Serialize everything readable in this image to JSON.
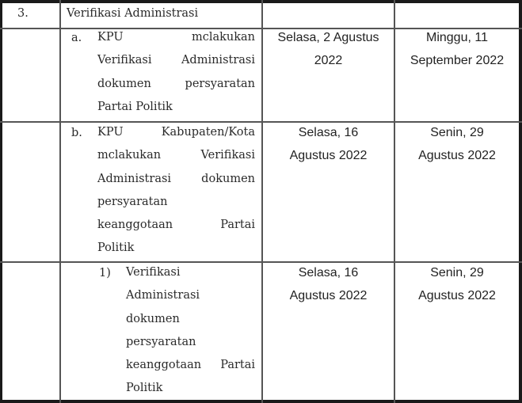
{
  "row_heading": {
    "number": "3.",
    "title": "Verifikasi Administrasi"
  },
  "rows": [
    {
      "label": "a.",
      "lines": [
        "KPU mclakukan",
        "Verifikasi Administrasi",
        "dokumen persyaratan",
        "Partai Politik"
      ],
      "justify": [
        true,
        true,
        true,
        false
      ],
      "start": [
        "Selasa, 2 Agustus",
        "2022"
      ],
      "end": [
        "Minggu, 11",
        "September 2022"
      ]
    },
    {
      "label": "b.",
      "lines": [
        "KPU Kabupaten/Kota",
        "mclakukan Verifikasi",
        "Administrasi dokumen",
        "persyaratan",
        "keanggotaan Partai",
        "Politik"
      ],
      "justify": [
        true,
        true,
        true,
        false,
        true,
        false
      ],
      "start": [
        "Selasa, 16",
        "Agustus 2022"
      ],
      "end": [
        "Senin, 29",
        "Agustus 2022"
      ]
    },
    {
      "label": "1)",
      "lines": [
        "Verifikasi",
        "Administrasi",
        "dokumen",
        "persyaratan",
        "keanggotaan Partai",
        "Politik"
      ],
      "justify": [
        false,
        false,
        false,
        false,
        true,
        false
      ],
      "start": [
        "Selasa, 16",
        "Agustus 2022"
      ],
      "end": [
        "Senin, 29",
        "Agustus 2022"
      ]
    }
  ]
}
